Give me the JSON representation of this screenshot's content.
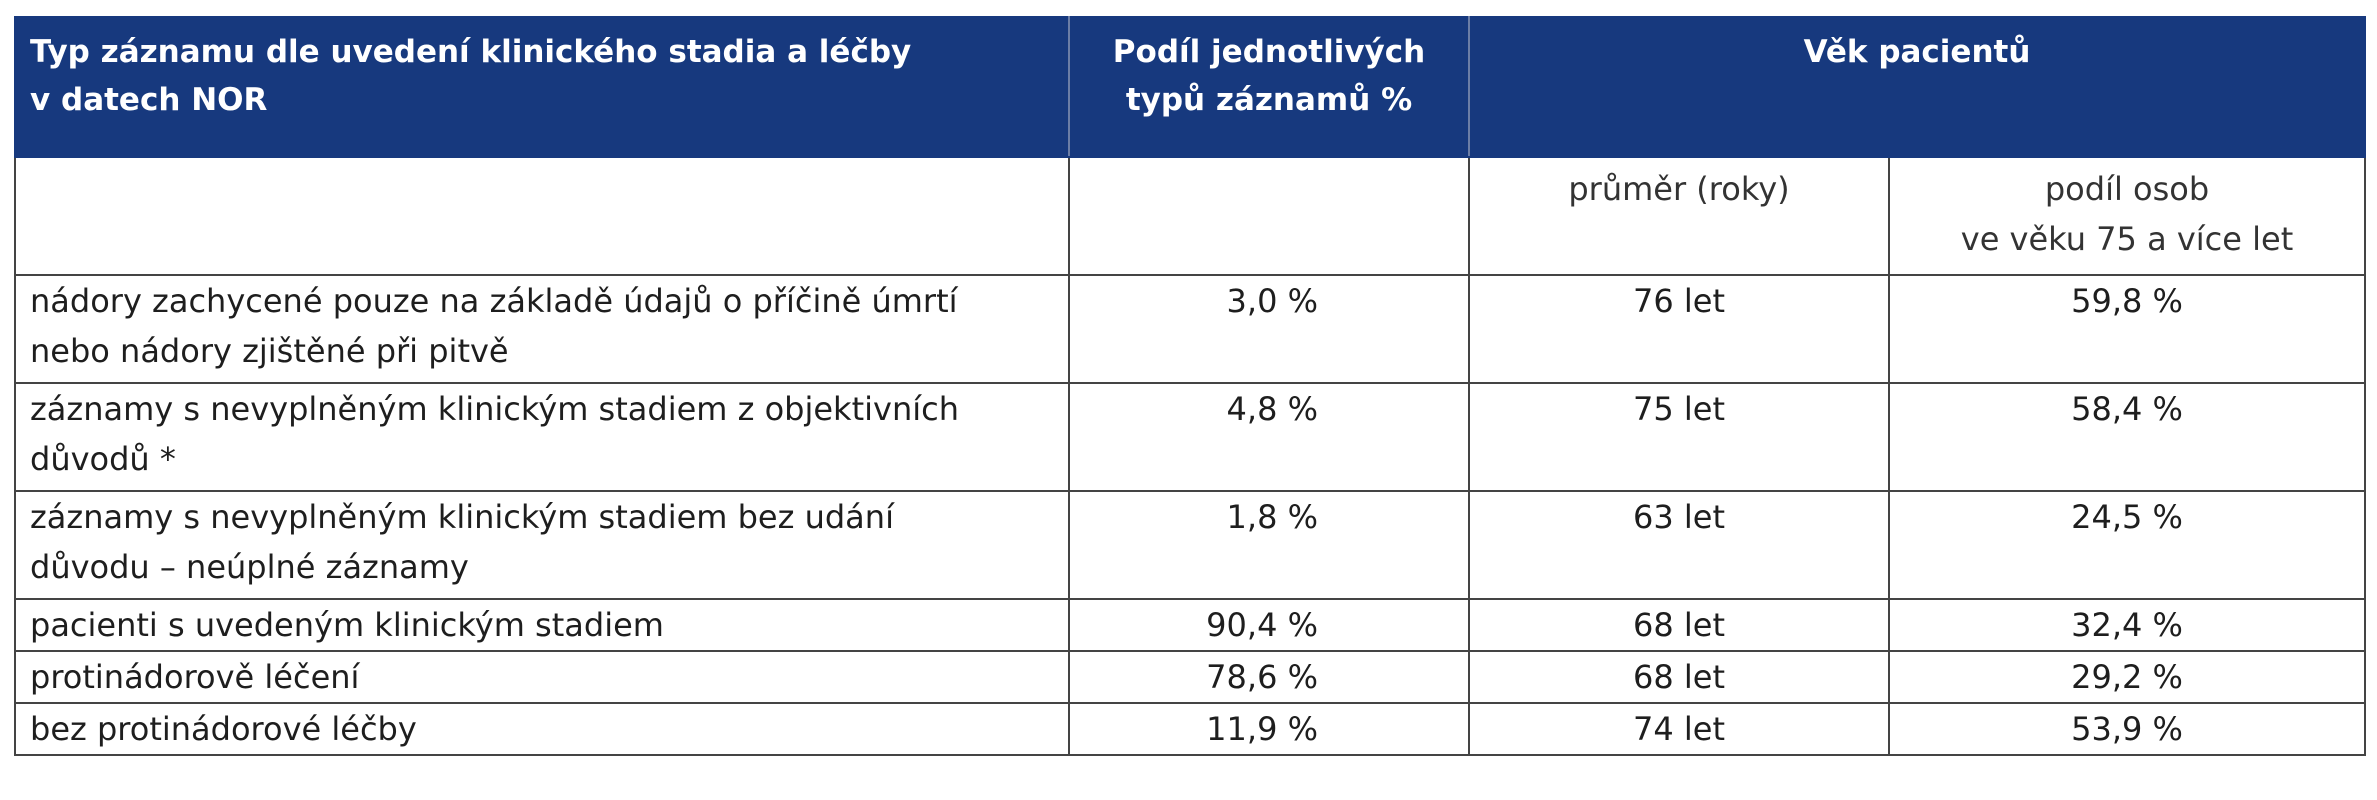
{
  "header": {
    "col1_line1": "Typ záznamu dle uvedení klinického stadia a léčby",
    "col1_line2": "v datech NOR",
    "col2_line1": "Podíl jednotlivých",
    "col2_line2": "typů záznamů %",
    "col3": "Věk pacientů"
  },
  "subheader": {
    "mean": "průměr (roky)",
    "share_line1": "podíl osob",
    "share_line2": "ve věku 75 a více let"
  },
  "rows": [
    {
      "type_line1": "nádory zachycené pouze na základě údajů o příčině úmrtí",
      "type_line2": "nebo nádory zjištěné při pitvě",
      "share": "3,0 %",
      "mean_age": "76 let",
      "share75": "59,8 %"
    },
    {
      "type_line1": "záznamy s nevyplněným klinickým stadiem z objektivních",
      "type_line2": "důvodů *",
      "share": "4,8 %",
      "mean_age": "75 let",
      "share75": "58,4 %"
    },
    {
      "type_line1": "záznamy s nevyplněným klinickým stadiem bez udání",
      "type_line2": "důvodu – neúplné záznamy",
      "share": "1,8 %",
      "mean_age": "63 let",
      "share75": "24,5 %"
    },
    {
      "type_line1": "pacienti s uvedeným klinickým stadiem",
      "share": "90,4 %",
      "mean_age": "68 let",
      "share75": "32,4 %"
    },
    {
      "type_line1": "protinádorově léčení",
      "share": "78,6 %",
      "mean_age": "68 let",
      "share75": "29,2 %"
    },
    {
      "type_line1": "bez protinádorové léčby",
      "share": "11,9 %",
      "mean_age": "74 let",
      "share75": "53,9 %"
    }
  ],
  "colors": {
    "header_bg": "#17397e",
    "header_text": "#ffffff",
    "border": "#444444"
  }
}
